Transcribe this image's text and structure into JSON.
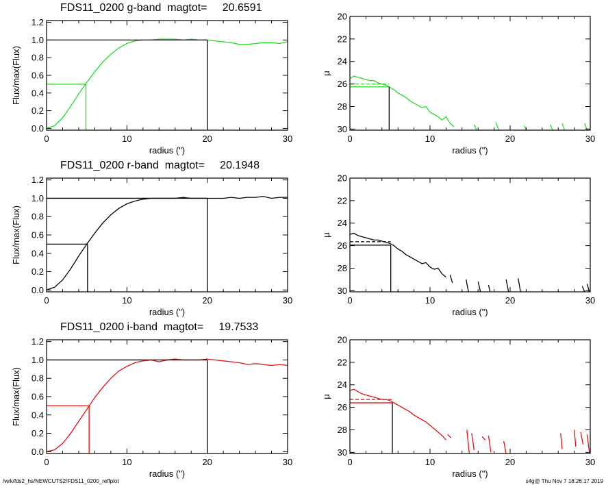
{
  "footer": {
    "left": "/wrk/fds2_hs/NEWCUTS2/FDS11_0200_reffplot",
    "right": "s4g@  Thu Nov  7 18:26:17 2019"
  },
  "colors": {
    "g": "#22dd22",
    "r": "#000000",
    "i": "#dd1111",
    "axes": "#000000"
  },
  "chart_data": [
    {
      "id": "g-growth",
      "type": "line",
      "title": "FDS11_0200 g-band  magtot=     20.6591",
      "xlabel": "radius (\")",
      "ylabel": "Flux/max(Flux)",
      "xlim": [
        0,
        30
      ],
      "ylim": [
        -0.02,
        1.22
      ],
      "xticks": [
        0,
        10,
        20,
        30
      ],
      "yticks": [
        0.0,
        0.2,
        0.4,
        0.6,
        0.8,
        1.0,
        1.2
      ],
      "series": [
        {
          "color": "#22dd22",
          "x": [
            0,
            1,
            2,
            3,
            4,
            5,
            6,
            7,
            8,
            9,
            10,
            11,
            12,
            13,
            14,
            15,
            16,
            17,
            18,
            19,
            20,
            21,
            22,
            23,
            24,
            25,
            26,
            27,
            28,
            29,
            30
          ],
          "y": [
            0,
            0.03,
            0.12,
            0.25,
            0.39,
            0.52,
            0.64,
            0.75,
            0.84,
            0.91,
            0.96,
            0.99,
            1.0,
            1.0,
            1.01,
            1.01,
            1.01,
            1.0,
            1.01,
            1.0,
            1.0,
            0.99,
            0.98,
            0.97,
            0.95,
            0.95,
            0.96,
            0.97,
            0.97,
            0.96,
            0.98
          ]
        }
      ],
      "half_light": {
        "radius": 4.9,
        "value": 0.5,
        "color": "#22dd22"
      },
      "total": {
        "radius": 20.0,
        "value": 1.0
      }
    },
    {
      "id": "g-sb",
      "type": "line",
      "title": "",
      "xlabel": "radius (\")",
      "ylabel": "μ",
      "xlim": [
        0,
        30
      ],
      "ylim": [
        30.1,
        20
      ],
      "reversed_y": true,
      "xticks": [
        0,
        10,
        20,
        30
      ],
      "yticks": [
        20,
        22,
        24,
        26,
        28,
        30
      ],
      "series": [
        {
          "color": "#22dd22",
          "x": [
            0,
            0.5,
            1,
            1.5,
            2,
            2.5,
            3,
            3.5,
            4,
            4.5,
            5,
            5.5,
            6,
            6.5,
            7,
            7.5,
            8,
            8.5,
            9,
            9.5,
            10,
            10.5,
            11,
            11.5,
            12,
            12.5,
            13
          ],
          "y": [
            25.5,
            25.3,
            25.4,
            25.5,
            25.6,
            25.7,
            25.7,
            25.9,
            26.0,
            26.1,
            26.3,
            26.5,
            26.8,
            27.0,
            27.2,
            27.5,
            27.7,
            27.9,
            28.1,
            28.0,
            28.5,
            28.7,
            28.9,
            29.2,
            28.9,
            29.5,
            29.8
          ]
        }
      ],
      "fragments": [
        {
          "x": [
            15.5,
            15.8
          ],
          "y": [
            29.6,
            30.1
          ]
        },
        {
          "x": [
            18.2,
            18.6
          ],
          "y": [
            29.4,
            30.1
          ]
        },
        {
          "x": [
            21.8,
            22.0
          ],
          "y": [
            29.7,
            30.1
          ]
        },
        {
          "x": [
            25.0,
            25.3
          ],
          "y": [
            29.6,
            30.1
          ]
        },
        {
          "x": [
            26.5,
            26.8
          ],
          "y": [
            29.5,
            30.1
          ]
        },
        {
          "x": [
            29.3,
            29.6
          ],
          "y": [
            29.5,
            30.1
          ]
        }
      ],
      "effective": {
        "radius": 4.9,
        "mu_e": 26.25,
        "mean_mu": 26.0,
        "color": "#22dd22"
      }
    },
    {
      "id": "r-growth",
      "type": "line",
      "title": "FDS11_0200 r-band  magtot=     20.1948",
      "xlabel": "radius (\")",
      "ylabel": "Flux/max(Flux)",
      "xlim": [
        0,
        30
      ],
      "ylim": [
        -0.02,
        1.22
      ],
      "xticks": [
        0,
        10,
        20,
        30
      ],
      "yticks": [
        0.0,
        0.2,
        0.4,
        0.6,
        0.8,
        1.0,
        1.2
      ],
      "series": [
        {
          "color": "#000000",
          "x": [
            0,
            1,
            2,
            3,
            4,
            5,
            6,
            7,
            8,
            9,
            10,
            11,
            12,
            13,
            14,
            15,
            16,
            17,
            18,
            19,
            20,
            21,
            22,
            23,
            24,
            25,
            26,
            27,
            28,
            29,
            30
          ],
          "y": [
            0,
            0.03,
            0.11,
            0.23,
            0.37,
            0.5,
            0.62,
            0.73,
            0.82,
            0.89,
            0.94,
            0.97,
            0.99,
            1.0,
            1.0,
            1.0,
            1.0,
            1.01,
            1.0,
            1.0,
            1.0,
            1.0,
            1.0,
            1.01,
            1.0,
            1.01,
            1.01,
            1.02,
            1.0,
            1.01,
            1.01
          ]
        }
      ],
      "half_light": {
        "radius": 5.1,
        "value": 0.5,
        "color": "#000000"
      },
      "total": {
        "radius": 20.0,
        "value": 1.0
      }
    },
    {
      "id": "r-sb",
      "type": "line",
      "title": "",
      "xlabel": "radius (\")",
      "ylabel": "μ",
      "xlim": [
        0,
        30
      ],
      "ylim": [
        30.1,
        20
      ],
      "reversed_y": true,
      "xticks": [
        0,
        10,
        20,
        30
      ],
      "yticks": [
        20,
        22,
        24,
        26,
        28,
        30
      ],
      "series": [
        {
          "color": "#000000",
          "x": [
            0,
            0.5,
            1,
            1.5,
            2,
            2.5,
            3,
            3.5,
            4,
            4.5,
            5,
            5.5,
            6,
            6.5,
            7,
            7.5,
            8,
            8.5,
            9,
            9.5,
            10,
            10.5,
            11,
            11.5,
            12
          ],
          "y": [
            25.0,
            24.9,
            25.1,
            25.2,
            25.3,
            25.4,
            25.5,
            25.5,
            25.6,
            25.7,
            25.8,
            26.0,
            26.3,
            26.5,
            26.8,
            27.0,
            27.2,
            27.4,
            27.6,
            27.5,
            27.9,
            28.1,
            28.0,
            28.5,
            28.8
          ]
        }
      ],
      "fragments": [
        {
          "x": [
            12.5,
            12.8
          ],
          "y": [
            28.6,
            29.3
          ]
        },
        {
          "x": [
            14.5,
            14.8
          ],
          "y": [
            29.0,
            30.1
          ]
        },
        {
          "x": [
            16.0,
            16.3
          ],
          "y": [
            29.2,
            30.1
          ]
        },
        {
          "x": [
            17.3,
            17.5
          ],
          "y": [
            29.5,
            30.1
          ]
        },
        {
          "x": [
            19.5,
            19.8
          ],
          "y": [
            29.0,
            30.1
          ]
        },
        {
          "x": [
            21.0,
            21.3
          ],
          "y": [
            28.9,
            30.1
          ]
        },
        {
          "x": [
            29.0,
            29.3
          ],
          "y": [
            29.6,
            30.1
          ]
        },
        {
          "x": [
            29.6,
            29.9
          ],
          "y": [
            29.4,
            30.1
          ]
        }
      ],
      "effective": {
        "radius": 5.1,
        "mu_e": 25.95,
        "mean_mu": 25.65,
        "color": "#000000"
      }
    },
    {
      "id": "i-growth",
      "type": "line",
      "title": "FDS11_0200 i-band  magtot=     19.7533",
      "xlabel": "radius (\")",
      "ylabel": "Flux/max(Flux)",
      "xlim": [
        0,
        30
      ],
      "ylim": [
        -0.02,
        1.22
      ],
      "xticks": [
        0,
        10,
        20,
        30
      ],
      "yticks": [
        0.0,
        0.2,
        0.4,
        0.6,
        0.8,
        1.0,
        1.2
      ],
      "series": [
        {
          "color": "#dd1111",
          "x": [
            0,
            1,
            2,
            3,
            4,
            5,
            6,
            7,
            8,
            9,
            10,
            11,
            12,
            13,
            14,
            15,
            16,
            17,
            18,
            19,
            20,
            21,
            22,
            23,
            24,
            25,
            26,
            27,
            28,
            29,
            30
          ],
          "y": [
            0,
            0.02,
            0.09,
            0.2,
            0.33,
            0.46,
            0.59,
            0.7,
            0.8,
            0.88,
            0.93,
            0.97,
            0.99,
            1.0,
            0.98,
            1.0,
            1.01,
            1.0,
            1.0,
            1.0,
            1.01,
            1.0,
            0.99,
            0.98,
            0.97,
            0.95,
            0.96,
            0.95,
            0.94,
            0.95,
            0.94
          ]
        }
      ],
      "half_light": {
        "radius": 5.3,
        "value": 0.5,
        "color": "#dd1111"
      },
      "total": {
        "radius": 20.0,
        "value": 1.0
      }
    },
    {
      "id": "i-sb",
      "type": "line",
      "title": "",
      "xlabel": "radius (\")",
      "ylabel": "μ",
      "xlim": [
        0,
        30
      ],
      "ylim": [
        30.1,
        20
      ],
      "reversed_y": true,
      "xticks": [
        0,
        10,
        20,
        30
      ],
      "yticks": [
        20,
        22,
        24,
        26,
        28,
        30
      ],
      "series": [
        {
          "color": "#dd1111",
          "x": [
            0,
            0.5,
            1,
            1.5,
            2,
            2.5,
            3,
            3.5,
            4,
            4.5,
            5,
            5.5,
            6,
            6.5,
            7,
            7.5,
            8,
            8.5,
            9,
            9.5,
            10,
            10.5,
            11,
            11.5,
            12
          ],
          "y": [
            24.5,
            24.4,
            24.6,
            24.8,
            24.9,
            25.0,
            25.1,
            25.2,
            25.3,
            25.3,
            25.4,
            25.6,
            25.8,
            26.0,
            26.2,
            26.4,
            26.7,
            26.9,
            27.1,
            27.3,
            27.6,
            27.9,
            28.2,
            28.5,
            28.9
          ]
        }
      ],
      "fragments": [
        {
          "x": [
            12.2,
            12.6
          ],
          "y": [
            28.4,
            28.7
          ]
        },
        {
          "x": [
            14.6,
            14.9
          ],
          "y": [
            28.0,
            30.1
          ]
        },
        {
          "x": [
            15.2,
            15.5
          ],
          "y": [
            28.3,
            29.8
          ]
        },
        {
          "x": [
            16.5,
            16.9
          ],
          "y": [
            28.6,
            28.9
          ]
        },
        {
          "x": [
            17.3,
            17.6
          ],
          "y": [
            28.5,
            30.0
          ]
        },
        {
          "x": [
            19.2,
            19.5
          ],
          "y": [
            29.0,
            30.1
          ]
        },
        {
          "x": [
            26.3,
            26.5
          ],
          "y": [
            28.3,
            29.7
          ]
        },
        {
          "x": [
            28.0,
            28.2
          ],
          "y": [
            28.0,
            29.5
          ]
        },
        {
          "x": [
            28.8,
            29.1
          ],
          "y": [
            28.2,
            29.3
          ]
        },
        {
          "x": [
            29.6,
            29.9
          ],
          "y": [
            28.4,
            30.0
          ]
        }
      ],
      "effective": {
        "radius": 5.3,
        "mu_e": 25.6,
        "mean_mu": 25.3,
        "color": "#dd1111"
      }
    }
  ]
}
